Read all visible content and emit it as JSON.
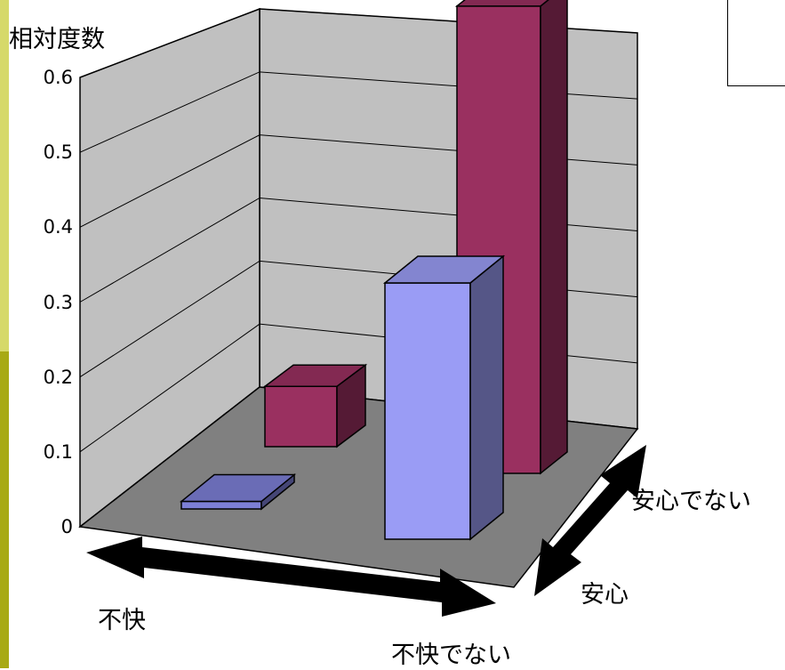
{
  "chart_data": {
    "type": "bar",
    "subtype": "3d-column",
    "ylabel": "相対度数",
    "ylim": [
      0,
      0.6
    ],
    "yticks": [
      "0",
      "0.1",
      "0.2",
      "0.3",
      "0.4",
      "0.5",
      "0.6"
    ],
    "x_categories": [
      "不快",
      "不快でない"
    ],
    "z_categories": [
      "安心",
      "安心でない"
    ],
    "bars": [
      {
        "x": "不快",
        "z": "安心",
        "value": 0.01,
        "color": "#7d7fd6"
      },
      {
        "x": "不快でない",
        "z": "安心",
        "value": 0.34,
        "color": "#9a9cf5"
      },
      {
        "x": "不快",
        "z": "安心でない",
        "value": 0.08,
        "color": "#9a3060"
      },
      {
        "x": "不快でない",
        "z": "安心でない",
        "value": 0.62,
        "color": "#9a3060"
      }
    ],
    "grid": true,
    "wall_color": "#c0c0c0",
    "floor_color": "#808080"
  },
  "axis_labels": {
    "x_left": "不快",
    "x_right": "不快でない",
    "z_front": "安心",
    "z_back": "安心でない"
  }
}
